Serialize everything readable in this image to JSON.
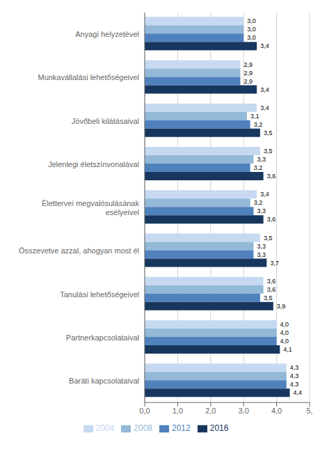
{
  "chart_data": {
    "type": "bar",
    "orientation": "horizontal",
    "categories": [
      "Anyagi helyzetével",
      "Munkavállalási lehetőségeivel",
      "Jövőbeli kilátásaival",
      "Jelenlegi életszínvonalával",
      "Élettervei megvalósulásának\nesélyeivel",
      "Összevetve azzal, ahogyan most él",
      "Tanulási lehetőségeivel",
      "Partnerkapcsolataival",
      "Baráti kapcsolataival"
    ],
    "series": [
      {
        "name": "2004",
        "color": "#c6d9f1",
        "values": [
          3.0,
          2.9,
          3.4,
          3.5,
          3.4,
          3.5,
          3.6,
          4.0,
          4.3
        ],
        "value_labels": [
          "3,0",
          "2,9",
          "3,4",
          "3,5",
          "3,4",
          "3,5",
          "3,6",
          "4,0",
          "4,3"
        ]
      },
      {
        "name": "2008",
        "color": "#93b8d8",
        "values": [
          3.0,
          2.9,
          3.1,
          3.3,
          3.2,
          3.3,
          3.6,
          4.0,
          4.3
        ],
        "value_labels": [
          "3,0",
          "2,9",
          "3,1",
          "3,3",
          "3,2",
          "3,3",
          "3,6",
          "4,0",
          "4,3"
        ]
      },
      {
        "name": "2012",
        "color": "#4f81bd",
        "values": [
          3.0,
          2.9,
          3.2,
          3.2,
          3.3,
          3.3,
          3.5,
          4.0,
          4.3
        ],
        "value_labels": [
          "3,0",
          "2,9",
          "3,2",
          "3,2",
          "3,3",
          "3,3",
          "3,5",
          "4,0",
          "4,3"
        ]
      },
      {
        "name": "2016",
        "color": "#17375e",
        "values": [
          3.4,
          3.4,
          3.5,
          3.6,
          3.6,
          3.7,
          3.9,
          4.1,
          4.4
        ],
        "value_labels": [
          "3,4",
          "3,4",
          "3,5",
          "3,6",
          "3,6",
          "3,7",
          "3,9",
          "4,1",
          "4,4"
        ]
      }
    ],
    "xlim": [
      0,
      5
    ],
    "xticks": [
      {
        "value": 0.0,
        "label": "0,0"
      },
      {
        "value": 1.0,
        "label": "1,0"
      },
      {
        "value": 2.0,
        "label": "2,0"
      },
      {
        "value": 3.0,
        "label": "3,0"
      },
      {
        "value": 4.0,
        "label": "4,0"
      },
      {
        "value": 5.0,
        "label": "5,"
      }
    ],
    "grid": true,
    "legend": "bottom",
    "data_labels": true
  }
}
